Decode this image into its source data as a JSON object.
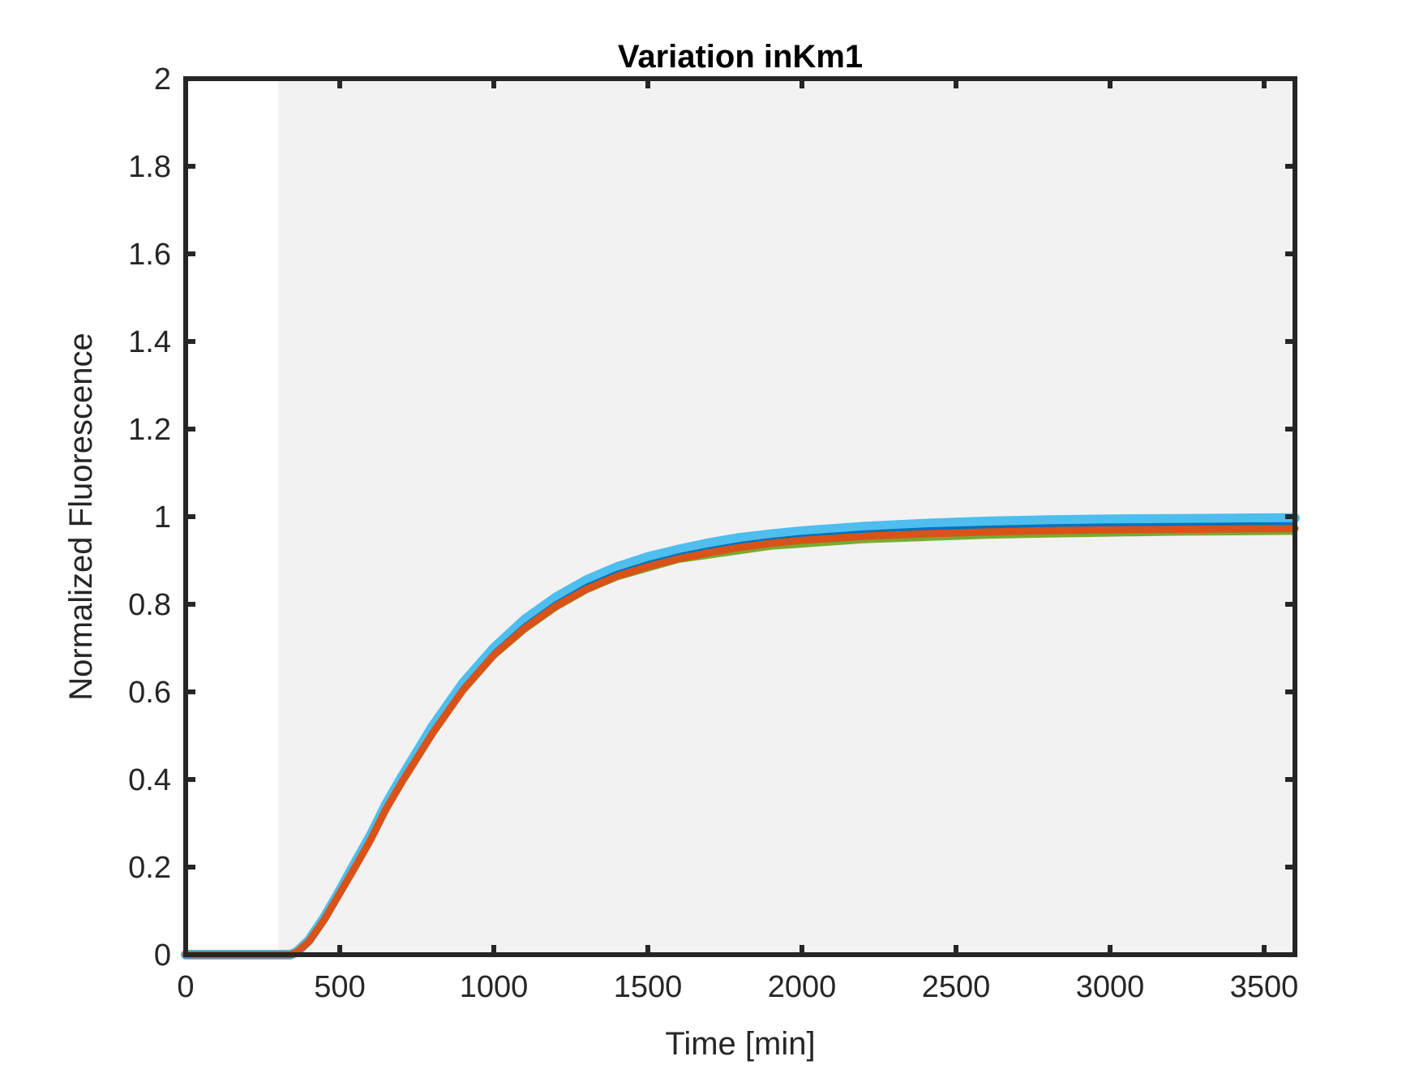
{
  "chart_data": {
    "type": "line",
    "title": "Variation inKm1",
    "xlabel": "Time [min]",
    "ylabel": "Normalized Fluorescence",
    "xlim": [
      0,
      3600
    ],
    "ylim": [
      0,
      2
    ],
    "xticks": [
      0,
      500,
      1000,
      1500,
      2000,
      2500,
      3000,
      3500
    ],
    "yticks": [
      0,
      0.2,
      0.4,
      0.6,
      0.8,
      1,
      1.2,
      1.4,
      1.6,
      1.8,
      2
    ],
    "xtick_labels": [
      "0",
      "500",
      "1000",
      "1500",
      "2000",
      "2500",
      "3000",
      "3500"
    ],
    "ytick_labels": [
      "0",
      "0.2",
      "0.4",
      "0.6",
      "0.8",
      "1",
      "1.2",
      "1.4",
      "1.6",
      "1.8",
      "2"
    ],
    "grid": false,
    "shaded_region": {
      "x_start": 300,
      "x_end": 3600,
      "color": "#f2f2f2"
    },
    "x": [
      0,
      300,
      340,
      360,
      400,
      450,
      500,
      550,
      600,
      650,
      700,
      800,
      900,
      1000,
      1100,
      1200,
      1300,
      1400,
      1500,
      1600,
      1700,
      1800,
      1900,
      2000,
      2200,
      2400,
      2600,
      2800,
      3000,
      3200,
      3400,
      3600
    ],
    "series": [
      {
        "color": "#77ac30",
        "width": 6,
        "values": [
          0,
          0,
          0,
          0.005,
          0.03,
          0.08,
          0.14,
          0.2,
          0.26,
          0.33,
          0.39,
          0.5,
          0.6,
          0.68,
          0.74,
          0.79,
          0.83,
          0.86,
          0.88,
          0.9,
          0.91,
          0.92,
          0.93,
          0.935,
          0.945,
          0.95,
          0.955,
          0.958,
          0.96,
          0.962,
          0.963,
          0.964
        ]
      },
      {
        "color": "#4dbeee",
        "width": 12,
        "values": [
          0,
          0,
          0,
          0.006,
          0.033,
          0.085,
          0.146,
          0.21,
          0.272,
          0.343,
          0.404,
          0.52,
          0.62,
          0.7,
          0.765,
          0.815,
          0.855,
          0.885,
          0.908,
          0.925,
          0.94,
          0.952,
          0.96,
          0.967,
          0.977,
          0.984,
          0.989,
          0.992,
          0.994,
          0.995,
          0.996,
          0.997
        ]
      },
      {
        "color": "#0072bd",
        "width": 5,
        "values": [
          0,
          0,
          0,
          0.005,
          0.031,
          0.082,
          0.143,
          0.205,
          0.266,
          0.337,
          0.397,
          0.51,
          0.61,
          0.69,
          0.752,
          0.802,
          0.842,
          0.872,
          0.894,
          0.912,
          0.926,
          0.938,
          0.947,
          0.954,
          0.964,
          0.971,
          0.975,
          0.978,
          0.98,
          0.981,
          0.982,
          0.983
        ]
      },
      {
        "color": "#d95319",
        "width": 9,
        "values": [
          0,
          0,
          0,
          0.005,
          0.03,
          0.08,
          0.14,
          0.2,
          0.262,
          0.332,
          0.392,
          0.504,
          0.604,
          0.684,
          0.745,
          0.795,
          0.834,
          0.864,
          0.886,
          0.904,
          0.918,
          0.93,
          0.939,
          0.946,
          0.955,
          0.961,
          0.965,
          0.968,
          0.97,
          0.971,
          0.972,
          0.973
        ]
      }
    ]
  }
}
